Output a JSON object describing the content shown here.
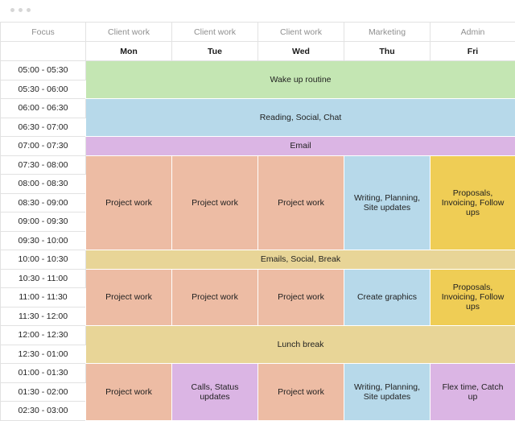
{
  "focus": [
    "Focus",
    "Client work",
    "Client work",
    "Client work",
    "Marketing",
    "Admin"
  ],
  "days": [
    "Mon",
    "Tue",
    "Wed",
    "Thu",
    "Fri"
  ],
  "times": [
    "05:00 - 05:30",
    "05:30 - 06:00",
    "06:00 - 06:30",
    "06:30 - 07:00",
    "07:00 - 07:30",
    "07:30 - 08:00",
    "08:00 - 08:30",
    "08:30 - 09:00",
    "09:00 - 09:30",
    "09:30 - 10:00",
    "10:00 - 10:30",
    "10:30 - 11:00",
    "11:00 - 11:30",
    "11:30 - 12:00",
    "12:00 - 12:30",
    "12:30 - 01:00",
    "01:00 - 01:30",
    "01:30 - 02:00",
    "02:30 - 03:00"
  ],
  "blocks": {
    "wake_up": "Wake up routine",
    "reading": "Reading, Social, Chat",
    "email": "Email",
    "project_work": "Project work",
    "marketing_am": "Writing, Planning, Site updates",
    "admin_am": "Proposals, Invoicing, Follow ups",
    "emails_social_break": "Emails, Social, Break",
    "create_graphics": "Create graphics",
    "admin_mid": "Proposals, Invoicing, Follow ups",
    "lunch": "Lunch break",
    "calls": "Calls, Status updates",
    "marketing_pm": "Writing, Planning, Site updates",
    "flex": "Flex time, Catch up"
  },
  "colors": {
    "green": "#c4e6b3",
    "blue": "#b7d9ea",
    "purple": "#dbb5e4",
    "peach": "#edbca4",
    "yellow": "#efcd55",
    "tan": "#e8d597"
  }
}
